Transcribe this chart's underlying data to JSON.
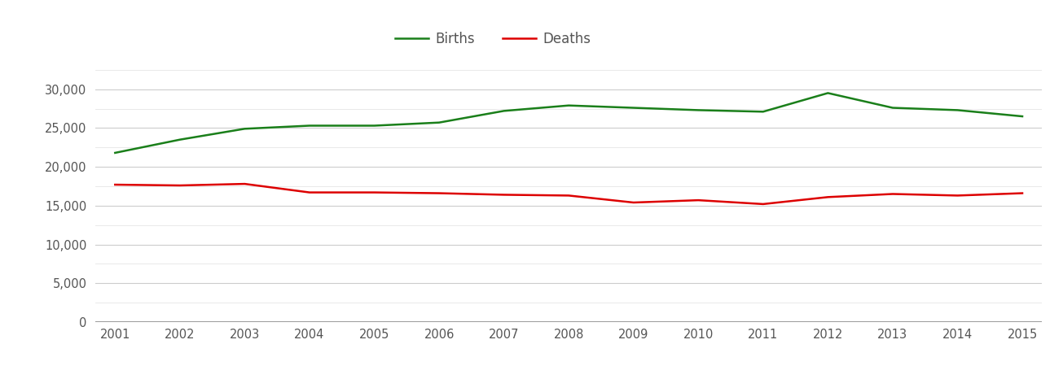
{
  "years": [
    2001,
    2002,
    2003,
    2004,
    2005,
    2006,
    2007,
    2008,
    2009,
    2010,
    2011,
    2012,
    2013,
    2014,
    2015
  ],
  "births": [
    21800,
    23500,
    24900,
    25300,
    25300,
    25700,
    27200,
    27900,
    27600,
    27300,
    27100,
    29500,
    27600,
    27300,
    26500
  ],
  "deaths": [
    17700,
    17600,
    17800,
    16700,
    16700,
    16600,
    16400,
    16300,
    15400,
    15700,
    15200,
    16100,
    16500,
    16300,
    16600
  ],
  "births_color": "#1a7f1a",
  "deaths_color": "#dd0000",
  "line_width": 1.8,
  "ylim": [
    0,
    33000
  ],
  "yticks": [
    0,
    5000,
    10000,
    15000,
    20000,
    25000,
    30000
  ],
  "minor_yticks": [
    2500,
    7500,
    12500,
    17500,
    22500,
    27500,
    32500
  ],
  "legend_labels": [
    "Births",
    "Deaths"
  ],
  "background_color": "#ffffff",
  "grid_color": "#cccccc",
  "minor_grid_color": "#e5e5e5",
  "label_color": "#555555"
}
